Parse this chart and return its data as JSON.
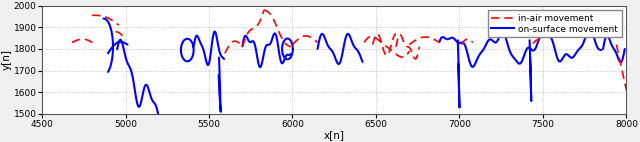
{
  "xlim": [
    4500,
    8000
  ],
  "ylim": [
    1500,
    2000
  ],
  "xlabel": "x[n]",
  "ylabel": "y[n]",
  "xticks": [
    4500,
    5000,
    5500,
    6000,
    6500,
    7000,
    7500,
    8000
  ],
  "yticks": [
    1500,
    1600,
    1700,
    1800,
    1900,
    2000
  ],
  "legend_labels": [
    "in-air movement",
    "on-surface movement"
  ],
  "line_air_color": "#FF0000",
  "line_surf_color": "#0000FF",
  "bg_color": "#F0F0F0",
  "axes_bg": "#FFFFFF",
  "grid_color": "#808080",
  "figsize": [
    6.4,
    1.42
  ],
  "dpi": 100,
  "tick_fontsize": 6.5,
  "label_fontsize": 7.5,
  "legend_fontsize": 6.5
}
